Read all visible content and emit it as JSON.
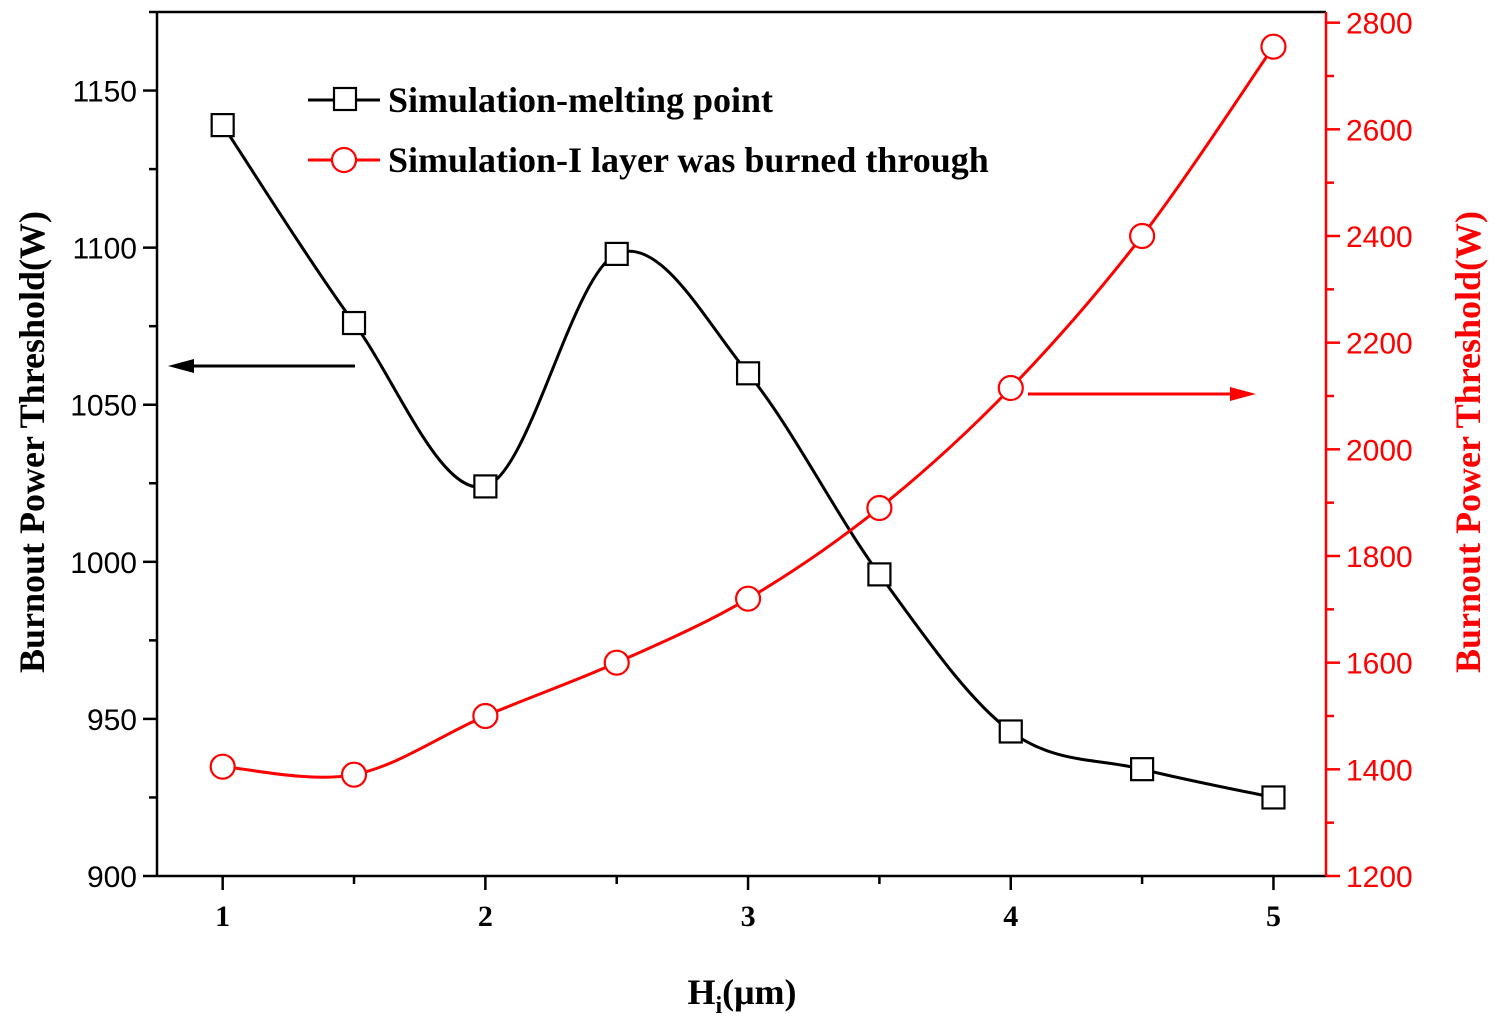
{
  "chart_data": {
    "type": "line",
    "title": "",
    "xlabel": "H",
    "xlabel_subscript": "i",
    "xlabel_unit": "(μm)",
    "ylabel_left": "Burnout Power Threshold(W)",
    "ylabel_right": "Burnout Power Threshold(W)",
    "x": [
      1,
      1.5,
      2,
      2.5,
      3,
      3.5,
      4,
      4.5,
      5
    ],
    "xlim": [
      0.75,
      5.2
    ],
    "x_ticks": [
      1,
      2,
      3,
      4,
      5
    ],
    "ylim_left": [
      900,
      1175
    ],
    "ylim_right": [
      1200,
      2820
    ],
    "y_ticks_left": [
      900,
      950,
      1000,
      1050,
      1100,
      1150
    ],
    "y_ticks_right": [
      1200,
      1400,
      1600,
      1800,
      2000,
      2200,
      2400,
      2600,
      2800
    ],
    "series": [
      {
        "name": "Simulation-melting point",
        "axis": "left",
        "color": "#000000",
        "marker": "square",
        "values": [
          1139,
          1076,
          1024,
          1098,
          1060,
          996,
          946,
          934,
          925
        ]
      },
      {
        "name": "Simulation-I layer was burned through",
        "axis": "right",
        "color": "#ff0000",
        "marker": "circle",
        "values": [
          1405,
          1390,
          1500,
          1600,
          1720,
          1890,
          2115,
          2400,
          2755
        ]
      }
    ],
    "legend_position": "top-left",
    "annotations": [
      {
        "type": "arrow",
        "direction": "left",
        "points_to": "left axis",
        "color": "#000000"
      },
      {
        "type": "arrow",
        "direction": "right",
        "points_to": "right axis",
        "color": "#ff0000"
      }
    ]
  }
}
